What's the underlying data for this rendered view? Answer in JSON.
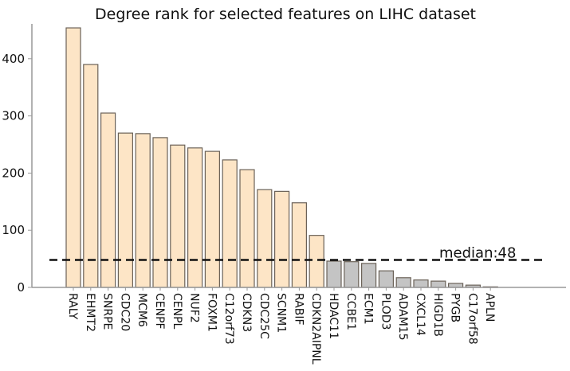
{
  "chart_data": {
    "type": "bar",
    "title": "Degree rank for selected features on LIHC dataset",
    "xlabel": "",
    "ylabel": "",
    "categories": [
      "RALY",
      "EHMT2",
      "SNRPE",
      "CDC20",
      "MCM6",
      "CENPF",
      "CENPL",
      "NUF2",
      "FOXM1",
      "C12orf73",
      "CDKN3",
      "CDC25C",
      "SCNM1",
      "RABIF",
      "CDKN2AIPNL",
      "HDAC11",
      "CCBE1",
      "ECM1",
      "PLOD3",
      "ADAM15",
      "CXCL14",
      "HIGD1B",
      "PYGB",
      "C17orf58",
      "APLN"
    ],
    "values": [
      454,
      390,
      305,
      270,
      269,
      262,
      249,
      244,
      238,
      223,
      206,
      171,
      168,
      148,
      91,
      46,
      45,
      42,
      29,
      17,
      13,
      11,
      7,
      4,
      1
    ],
    "highlighted_count": 15,
    "colors": {
      "highlight": "#fde5c6",
      "other": "#c4c4c4",
      "edge": "#6b6258"
    },
    "yticks": [
      0,
      100,
      200,
      300,
      400
    ],
    "ylim": [
      0,
      461
    ],
    "grid": false,
    "median": {
      "value": 48,
      "label": "median:48"
    }
  }
}
